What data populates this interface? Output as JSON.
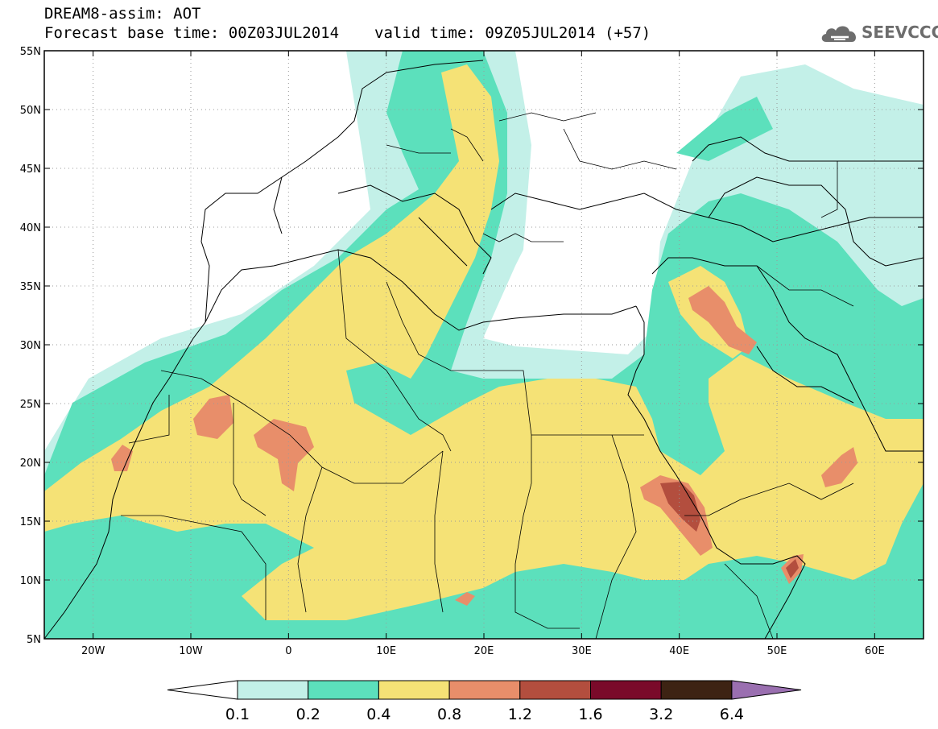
{
  "title": {
    "line1": "DREAM8-assim: AOT",
    "base_time": "Forecast base time: 00Z03JUL2014",
    "valid_time": "valid time: 09Z05JUL2014 (+57)"
  },
  "logo": {
    "text": "SEEVCCC",
    "icon": "cloud-icon"
  },
  "map": {
    "lon_ticks": [
      {
        "value": -20,
        "label": "20W"
      },
      {
        "value": -10,
        "label": "10W"
      },
      {
        "value": 0,
        "label": "0"
      },
      {
        "value": 10,
        "label": "10E"
      },
      {
        "value": 20,
        "label": "20E"
      },
      {
        "value": 30,
        "label": "30E"
      },
      {
        "value": 40,
        "label": "40E"
      },
      {
        "value": 50,
        "label": "50E"
      },
      {
        "value": 60,
        "label": "60E"
      }
    ],
    "lat_ticks": [
      {
        "value": 55,
        "label": "55N"
      },
      {
        "value": 50,
        "label": "50N"
      },
      {
        "value": 45,
        "label": "45N"
      },
      {
        "value": 40,
        "label": "40N"
      },
      {
        "value": 35,
        "label": "35N"
      },
      {
        "value": 30,
        "label": "30N"
      },
      {
        "value": 25,
        "label": "25N"
      },
      {
        "value": 20,
        "label": "20N"
      },
      {
        "value": 15,
        "label": "15N"
      },
      {
        "value": 10,
        "label": "10N"
      },
      {
        "value": 5,
        "label": "5N"
      }
    ],
    "lon_range": [
      -25,
      65
    ],
    "lat_range": [
      5,
      55
    ],
    "grid": "dotted"
  },
  "colorbar": {
    "labels": [
      "0.1",
      "0.2",
      "0.4",
      "0.8",
      "1.2",
      "1.6",
      "3.2",
      "6.4"
    ],
    "colors": [
      "#ffffff",
      "#c3f0e8",
      "#5ce0bc",
      "#f5e276",
      "#e88e6a",
      "#b34e3e",
      "#7a0a2a",
      "#3d2313",
      "#9a6fb0"
    ]
  }
}
